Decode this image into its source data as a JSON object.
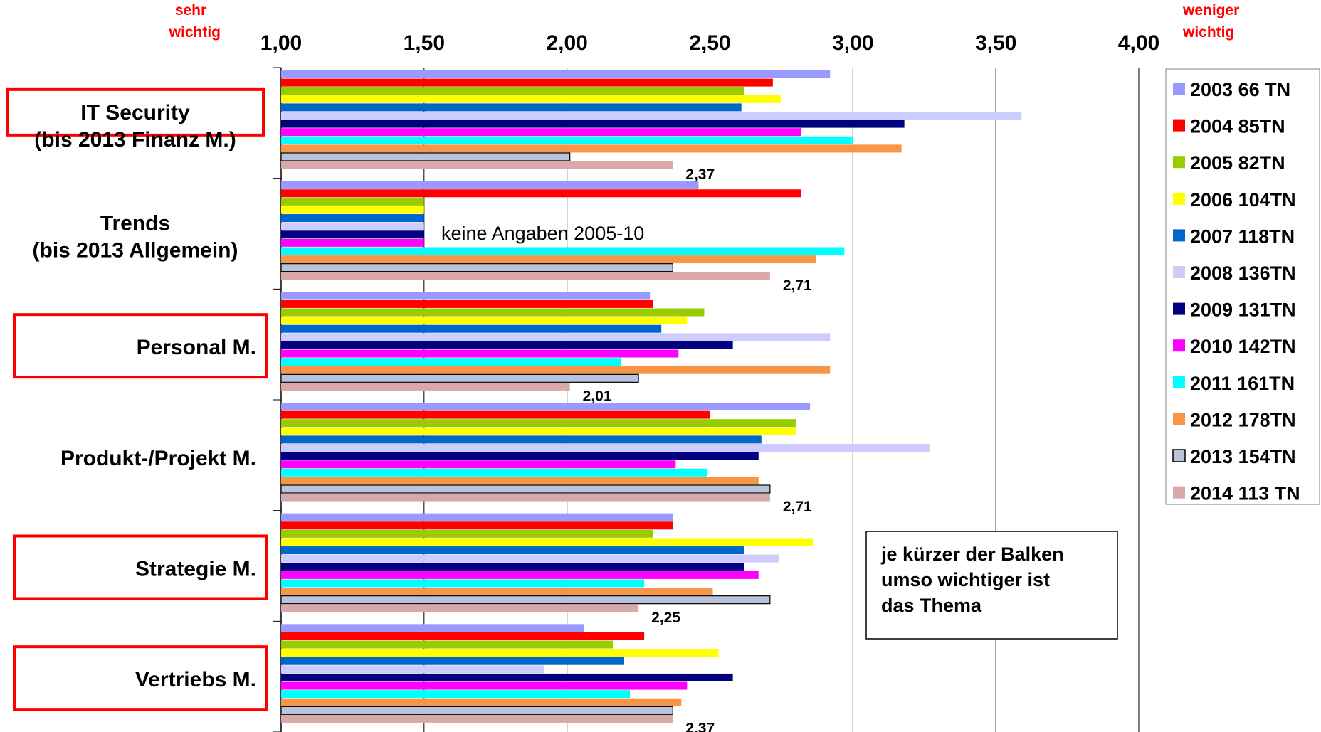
{
  "chart_data": {
    "type": "bar",
    "orientation": "horizontal",
    "x_range": [
      1.0,
      4.0
    ],
    "x_ticks": [
      "1,00",
      "1,50",
      "2,00",
      "2,50",
      "3,00",
      "3,50",
      "4,00"
    ],
    "left_axis_note": [
      "sehr",
      "wichtig"
    ],
    "right_axis_note": [
      "weniger",
      "wichtig"
    ],
    "grid": "vertical",
    "legend_position": "right",
    "categories": [
      {
        "lines": [
          "IT Security",
          "(bis 2013 Finanz M.)"
        ],
        "boxed": true
      },
      {
        "lines": [
          "Trends",
          "(bis 2013 Allgemein)"
        ],
        "boxed": false
      },
      {
        "lines": [
          "Personal M."
        ],
        "boxed": true
      },
      {
        "lines": [
          "Produkt-/Projekt M."
        ],
        "boxed": false
      },
      {
        "lines": [
          "Strategie M."
        ],
        "boxed": true
      },
      {
        "lines": [
          "Vertriebs M."
        ],
        "boxed": true
      }
    ],
    "series": [
      {
        "name": "2003 66 TN",
        "color": "#9999ff",
        "values": [
          2.92,
          2.46,
          2.29,
          2.85,
          2.37,
          2.06
        ]
      },
      {
        "name": "2004 85TN",
        "color": "#ff0000",
        "values": [
          2.72,
          2.82,
          2.3,
          2.5,
          2.37,
          2.27
        ]
      },
      {
        "name": "2005 82TN",
        "color": "#99cc00",
        "values": [
          2.62,
          1.5,
          2.48,
          2.8,
          2.3,
          2.16
        ]
      },
      {
        "name": "2006 104TN",
        "color": "#ffff00",
        "values": [
          2.75,
          1.5,
          2.42,
          2.8,
          2.86,
          2.53
        ]
      },
      {
        "name": "2007 118TN",
        "color": "#0066cc",
        "values": [
          2.61,
          1.5,
          2.33,
          2.68,
          2.62,
          2.2
        ]
      },
      {
        "name": "2008 136TN",
        "color": "#ccccff",
        "values": [
          3.59,
          1.5,
          2.92,
          3.27,
          2.74,
          1.92
        ]
      },
      {
        "name": "2009 131TN",
        "color": "#000080",
        "values": [
          3.18,
          1.5,
          2.58,
          2.67,
          2.62,
          2.58
        ]
      },
      {
        "name": "2010 142TN",
        "color": "#ff00ff",
        "values": [
          2.82,
          1.5,
          2.39,
          2.38,
          2.67,
          2.42
        ]
      },
      {
        "name": "2011 161TN",
        "color": "#00ffff",
        "values": [
          3.0,
          2.97,
          2.19,
          2.49,
          2.27,
          2.22
        ]
      },
      {
        "name": "2012 178TN",
        "color": "#f79646",
        "values": [
          3.17,
          2.87,
          2.92,
          2.67,
          2.51,
          2.4
        ]
      },
      {
        "name": "2013 154TN",
        "color": "#b8c4dc",
        "outline": "#000000",
        "values": [
          2.01,
          2.37,
          2.25,
          2.71,
          2.71,
          2.37
        ]
      },
      {
        "name": "2014 113 TN",
        "color": "#d9a9a9",
        "values": [
          2.37,
          2.71,
          2.01,
          2.71,
          2.25,
          2.37
        ]
      }
    ],
    "data_labels": [
      "2,37",
      "2,71",
      "2,01",
      "2,71",
      "2,25",
      "2,37"
    ],
    "annotation": "keine Angaben  2005-10",
    "note_box": [
      "je kürzer der Balken",
      "umso wichtiger ist",
      "das Thema"
    ]
  }
}
